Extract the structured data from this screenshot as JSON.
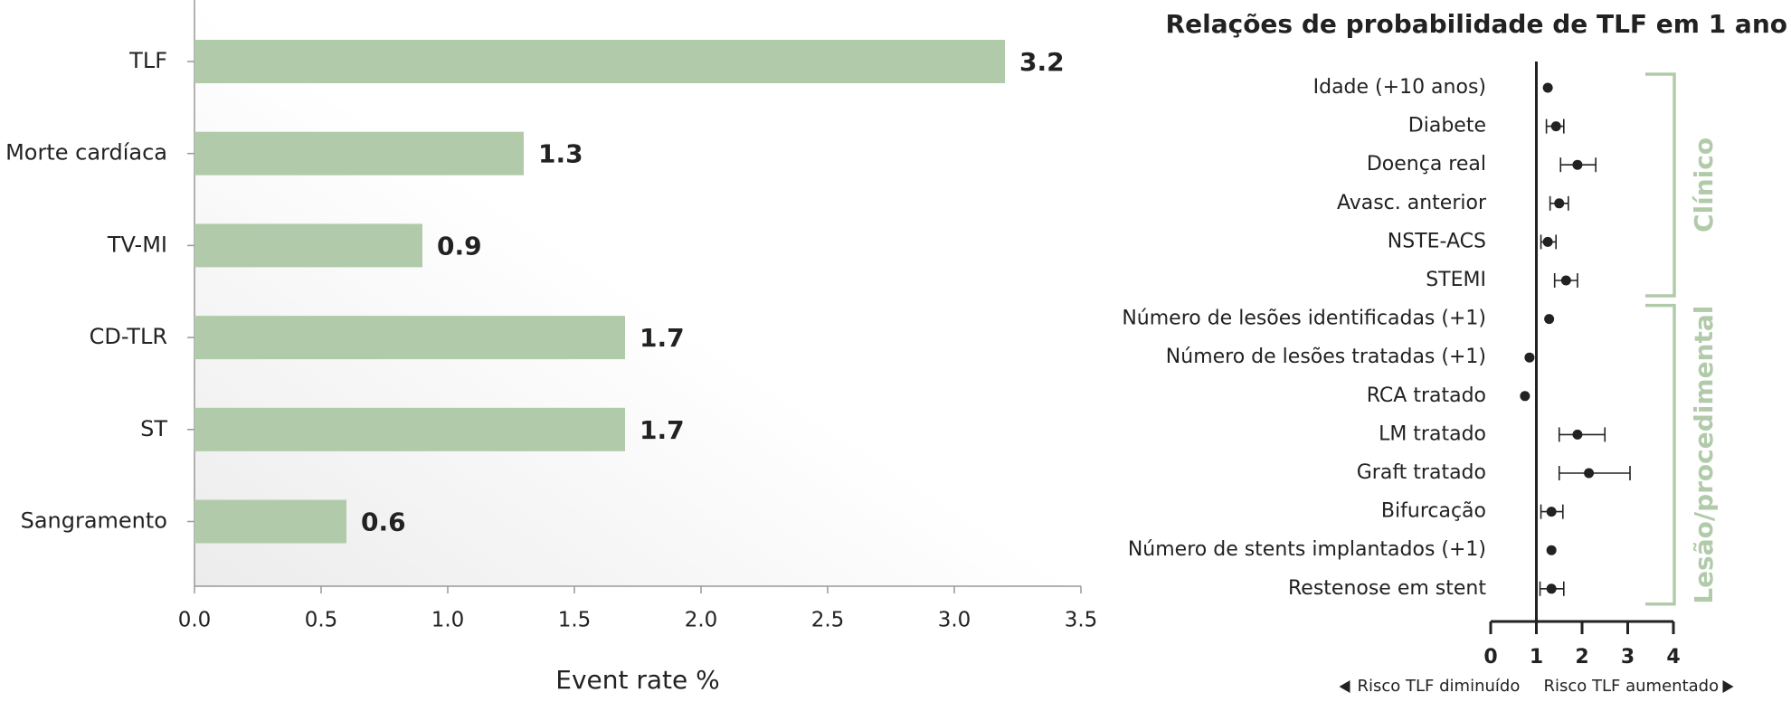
{
  "chart_data": [
    {
      "type": "bar",
      "orientation": "horizontal",
      "categories": [
        "TLF",
        "Morte cardíaca",
        "TV-MI",
        "CD-TLR",
        "ST",
        "Sangramento"
      ],
      "values": [
        3.2,
        1.3,
        0.9,
        1.7,
        1.7,
        0.6
      ],
      "color": "#b1cbaa",
      "x_label": "Event rate %",
      "xlim": [
        0,
        3.5
      ],
      "xticks": [
        {
          "value": 0,
          "label": "0.0"
        },
        0.5,
        {
          "value": 1,
          "label": "1.0"
        },
        1.5,
        {
          "value": 2,
          "label": "2.0"
        },
        2.5,
        {
          "value": 3,
          "label": "3.0"
        },
        3.5
      ]
    },
    {
      "type": "forest",
      "title": "Relações de probabilidade de TLF em 1 ano",
      "groups": [
        {
          "name": "Clínico",
          "categories": [
            "Idade (+10 anos)",
            "Diabete",
            "Doença real",
            "Avasc. anterior",
            "NSTE-ACS",
            "STEMI"
          ],
          "values": [
            1.25,
            1.43,
            1.9,
            1.5,
            1.25,
            1.65
          ],
          "ci_lower": [
            null,
            1.22,
            1.53,
            1.3,
            1.1,
            1.4
          ],
          "ci_upper": [
            null,
            1.6,
            2.3,
            1.7,
            1.43,
            1.9
          ]
        },
        {
          "name": "Lesão/procedimental",
          "categories": [
            "Número de lesões identificadas (+1)",
            "Número de lesões tratadas (+1)",
            "RCA tratado",
            "LM tratado",
            "Graft tratado",
            "Bifurcação",
            "Número de stents implantados (+1)",
            "Restenose em stent"
          ],
          "values": [
            1.28,
            0.85,
            0.75,
            1.9,
            2.15,
            1.33,
            1.33,
            1.33
          ],
          "ci_lower": [
            null,
            null,
            null,
            1.5,
            1.5,
            1.1,
            null,
            1.08
          ],
          "ci_upper": [
            null,
            null,
            null,
            2.5,
            3.05,
            1.58,
            null,
            1.6
          ]
        }
      ],
      "group_color": "#b1cbaa",
      "reference": 1,
      "annotations": [
        "Risco TLF diminuído",
        "Risco TLF aumentado"
      ],
      "xlim": [
        0,
        4
      ],
      "xticks": [
        0,
        1,
        2,
        3,
        4
      ]
    }
  ]
}
